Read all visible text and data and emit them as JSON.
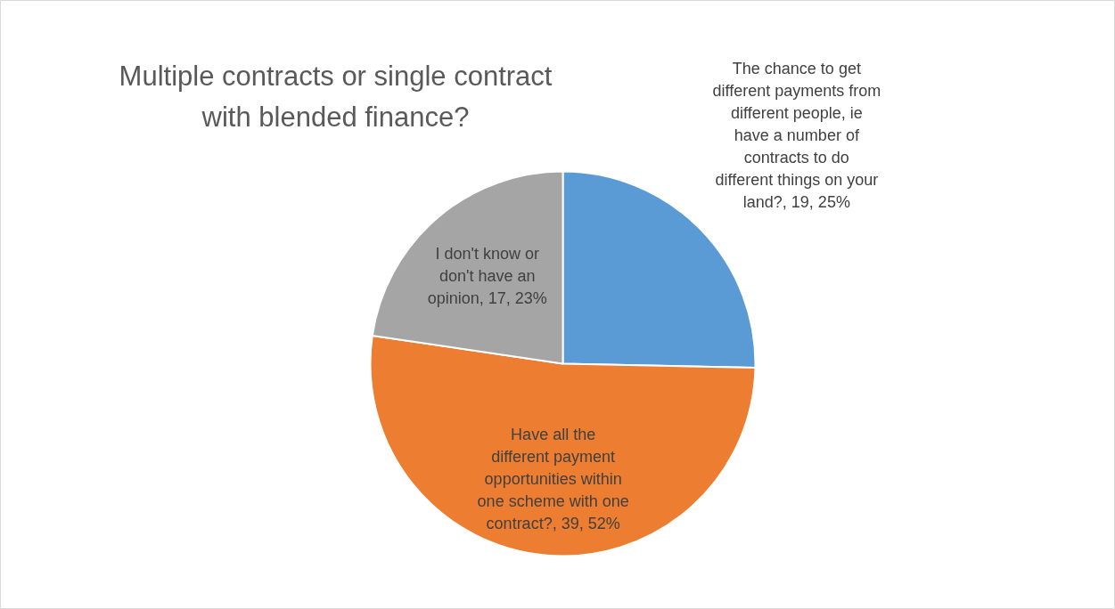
{
  "chart_data": {
    "type": "pie",
    "title": "Multiple contracts or single contract with blended finance?",
    "categories": [
      "The chance to get different payments from different people, ie have a number of contracts to do different things on your land?",
      "Have all the different payment opportunities within one scheme with one contract?",
      "I don't know or don't have an opinion"
    ],
    "values": [
      19,
      39,
      17
    ],
    "value_labels": [
      "19, 25%",
      "39, 52%",
      "17, 23%"
    ],
    "colors": [
      "#5b9bd5",
      "#ed7d31",
      "#a5a5a5"
    ]
  }
}
